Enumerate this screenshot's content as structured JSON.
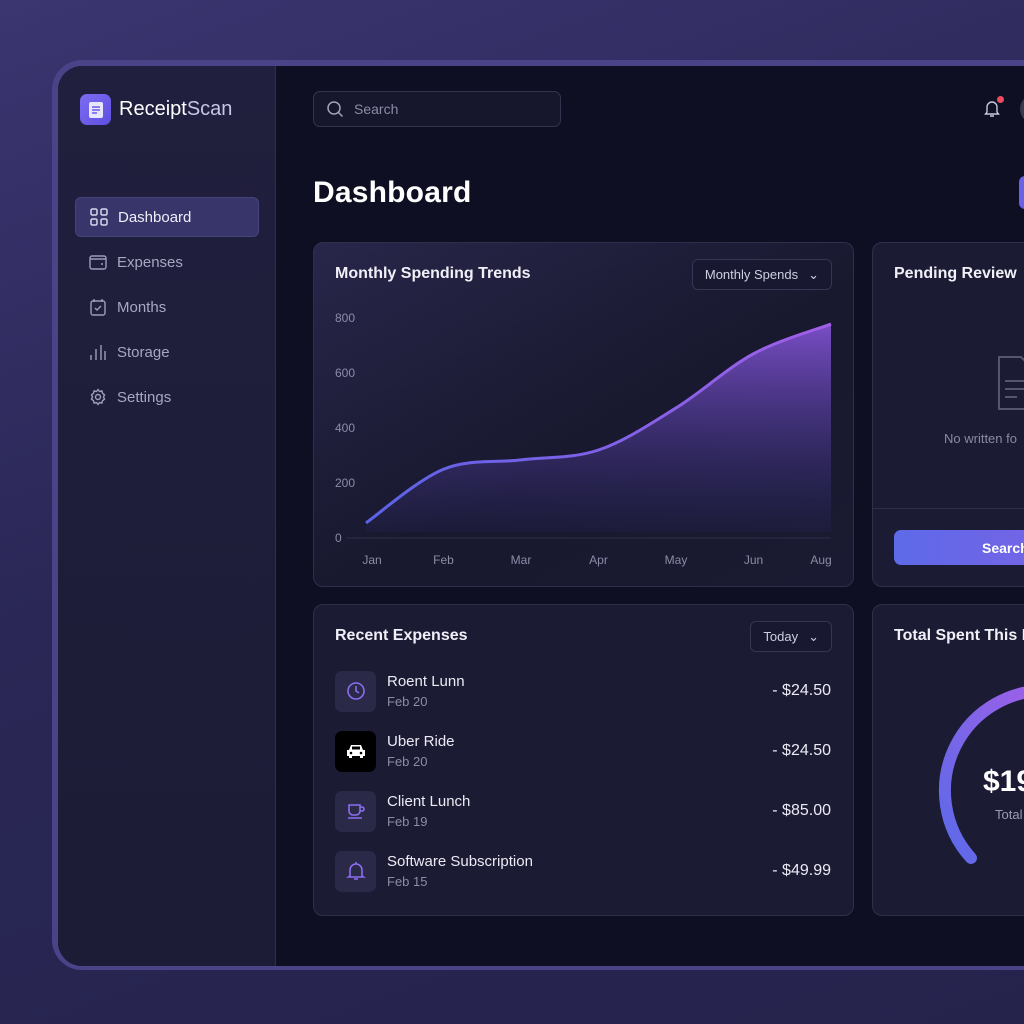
{
  "app": {
    "name_a": "Receipt",
    "name_b": "Scan"
  },
  "sidebar": {
    "items": [
      {
        "label": "Dashboard",
        "icon": "grid-icon",
        "active": true
      },
      {
        "label": "Expenses",
        "icon": "wallet-icon"
      },
      {
        "label": "Months",
        "icon": "calendar-check-icon"
      },
      {
        "label": "Storage",
        "icon": "bar-chart-icon"
      },
      {
        "label": "Settings",
        "icon": "gear-icon"
      }
    ]
  },
  "header": {
    "search_placeholder": "Search",
    "notifications": true
  },
  "page": {
    "title": "Dashboard"
  },
  "trends": {
    "title": "Monthly Spending Trends",
    "select": "Monthly Spends"
  },
  "chart_data": {
    "type": "area",
    "categories": [
      "Jan",
      "Feb",
      "Mar",
      "Apr",
      "May",
      "Jun",
      "Aug"
    ],
    "values": [
      55,
      250,
      284,
      320,
      473,
      670,
      778
    ],
    "ylim": [
      0,
      800
    ],
    "yticks": [
      0,
      200,
      400,
      600,
      800
    ],
    "grid": false,
    "colors": {
      "line_start": "#5b63e6",
      "line_end": "#a35fe8"
    }
  },
  "pending": {
    "title": "Pending Review",
    "empty_text": "No written fo",
    "button": "Search"
  },
  "recent": {
    "title": "Recent Expenses",
    "select": "Today",
    "items": [
      {
        "name": "Roent Lunn",
        "date": "Feb 20",
        "amount": "- $24.50",
        "icon": "clock-icon"
      },
      {
        "name": "Uber Ride",
        "date": "Feb 20",
        "amount": "- $24.50",
        "icon": "car-icon"
      },
      {
        "name": "Client Lunch",
        "date": "Feb 19",
        "amount": "- $85.00",
        "icon": "coffee-icon"
      },
      {
        "name": "Software Subscription",
        "date": "Feb 15",
        "amount": "- $49.99",
        "icon": "bell-icon"
      }
    ]
  },
  "total": {
    "title": "Total Spent This M",
    "amount": "$19",
    "label": "Total"
  }
}
